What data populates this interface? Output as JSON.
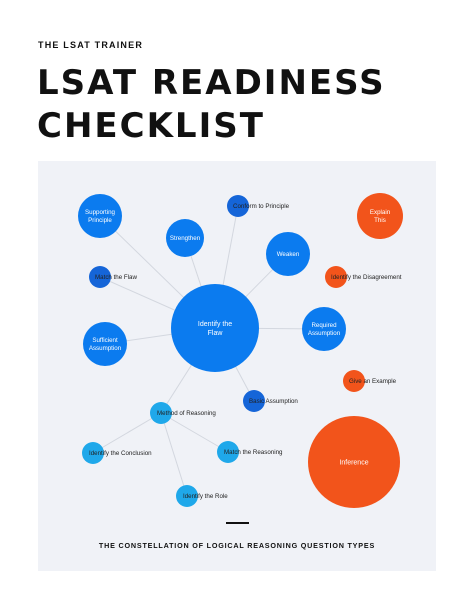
{
  "header": {
    "brand": "THE LSAT TRAINER",
    "title_line1": "LSAT READINESS",
    "title_line2": "CHECKLIST"
  },
  "caption": "THE CONSTELLATION OF LOGICAL REASONING QUESTION TYPES",
  "colors": {
    "blue": "#0b7bef",
    "dark_blue": "#1565d8",
    "light_blue": "#1fa8ea",
    "orange": "#f2541b",
    "line": "#d3d7df",
    "panel": "#f0f2f7"
  },
  "nodes": [
    {
      "id": "supporting-principle",
      "label": "Supporting Principle",
      "color": "blue"
    },
    {
      "id": "strengthen",
      "label": "Strengthen",
      "color": "blue"
    },
    {
      "id": "conform-to-principle",
      "label": "Conform to Principle",
      "color": "dark_blue"
    },
    {
      "id": "weaken",
      "label": "Weaken",
      "color": "blue"
    },
    {
      "id": "explain-this",
      "label": "Explain This",
      "color": "orange"
    },
    {
      "id": "match-the-flaw",
      "label": "Match the Flaw",
      "color": "dark_blue"
    },
    {
      "id": "identify-the-disagreement",
      "label": "Identify the Disagreement",
      "color": "orange"
    },
    {
      "id": "identify-the-flaw",
      "label": "Identify the Flaw",
      "color": "blue"
    },
    {
      "id": "sufficient-assumption",
      "label": "Sufficient Assumption",
      "color": "blue"
    },
    {
      "id": "required-assumption",
      "label": "Required Assumption",
      "color": "blue"
    },
    {
      "id": "give-an-example",
      "label": "Give an Example",
      "color": "orange"
    },
    {
      "id": "basic-assumption",
      "label": "Basic Assumption",
      "color": "dark_blue"
    },
    {
      "id": "method-of-reasoning",
      "label": "Method of Reasoning",
      "color": "light_blue"
    },
    {
      "id": "identify-the-conclusion",
      "label": "Identify the Conclusion",
      "color": "light_blue"
    },
    {
      "id": "match-the-reasoning",
      "label": "Match the Reasoning",
      "color": "light_blue"
    },
    {
      "id": "inference",
      "label": "Inference",
      "color": "orange"
    },
    {
      "id": "identify-the-role",
      "label": "Identify the Role",
      "color": "light_blue"
    }
  ],
  "edges": [
    [
      "identify-the-flaw",
      "supporting-principle"
    ],
    [
      "identify-the-flaw",
      "strengthen"
    ],
    [
      "identify-the-flaw",
      "conform-to-principle"
    ],
    [
      "identify-the-flaw",
      "weaken"
    ],
    [
      "identify-the-flaw",
      "match-the-flaw"
    ],
    [
      "identify-the-flaw",
      "sufficient-assumption"
    ],
    [
      "identify-the-flaw",
      "required-assumption"
    ],
    [
      "identify-the-flaw",
      "basic-assumption"
    ],
    [
      "identify-the-flaw",
      "method-of-reasoning"
    ],
    [
      "method-of-reasoning",
      "identify-the-conclusion"
    ],
    [
      "method-of-reasoning",
      "match-the-reasoning"
    ],
    [
      "method-of-reasoning",
      "identify-the-role"
    ]
  ]
}
